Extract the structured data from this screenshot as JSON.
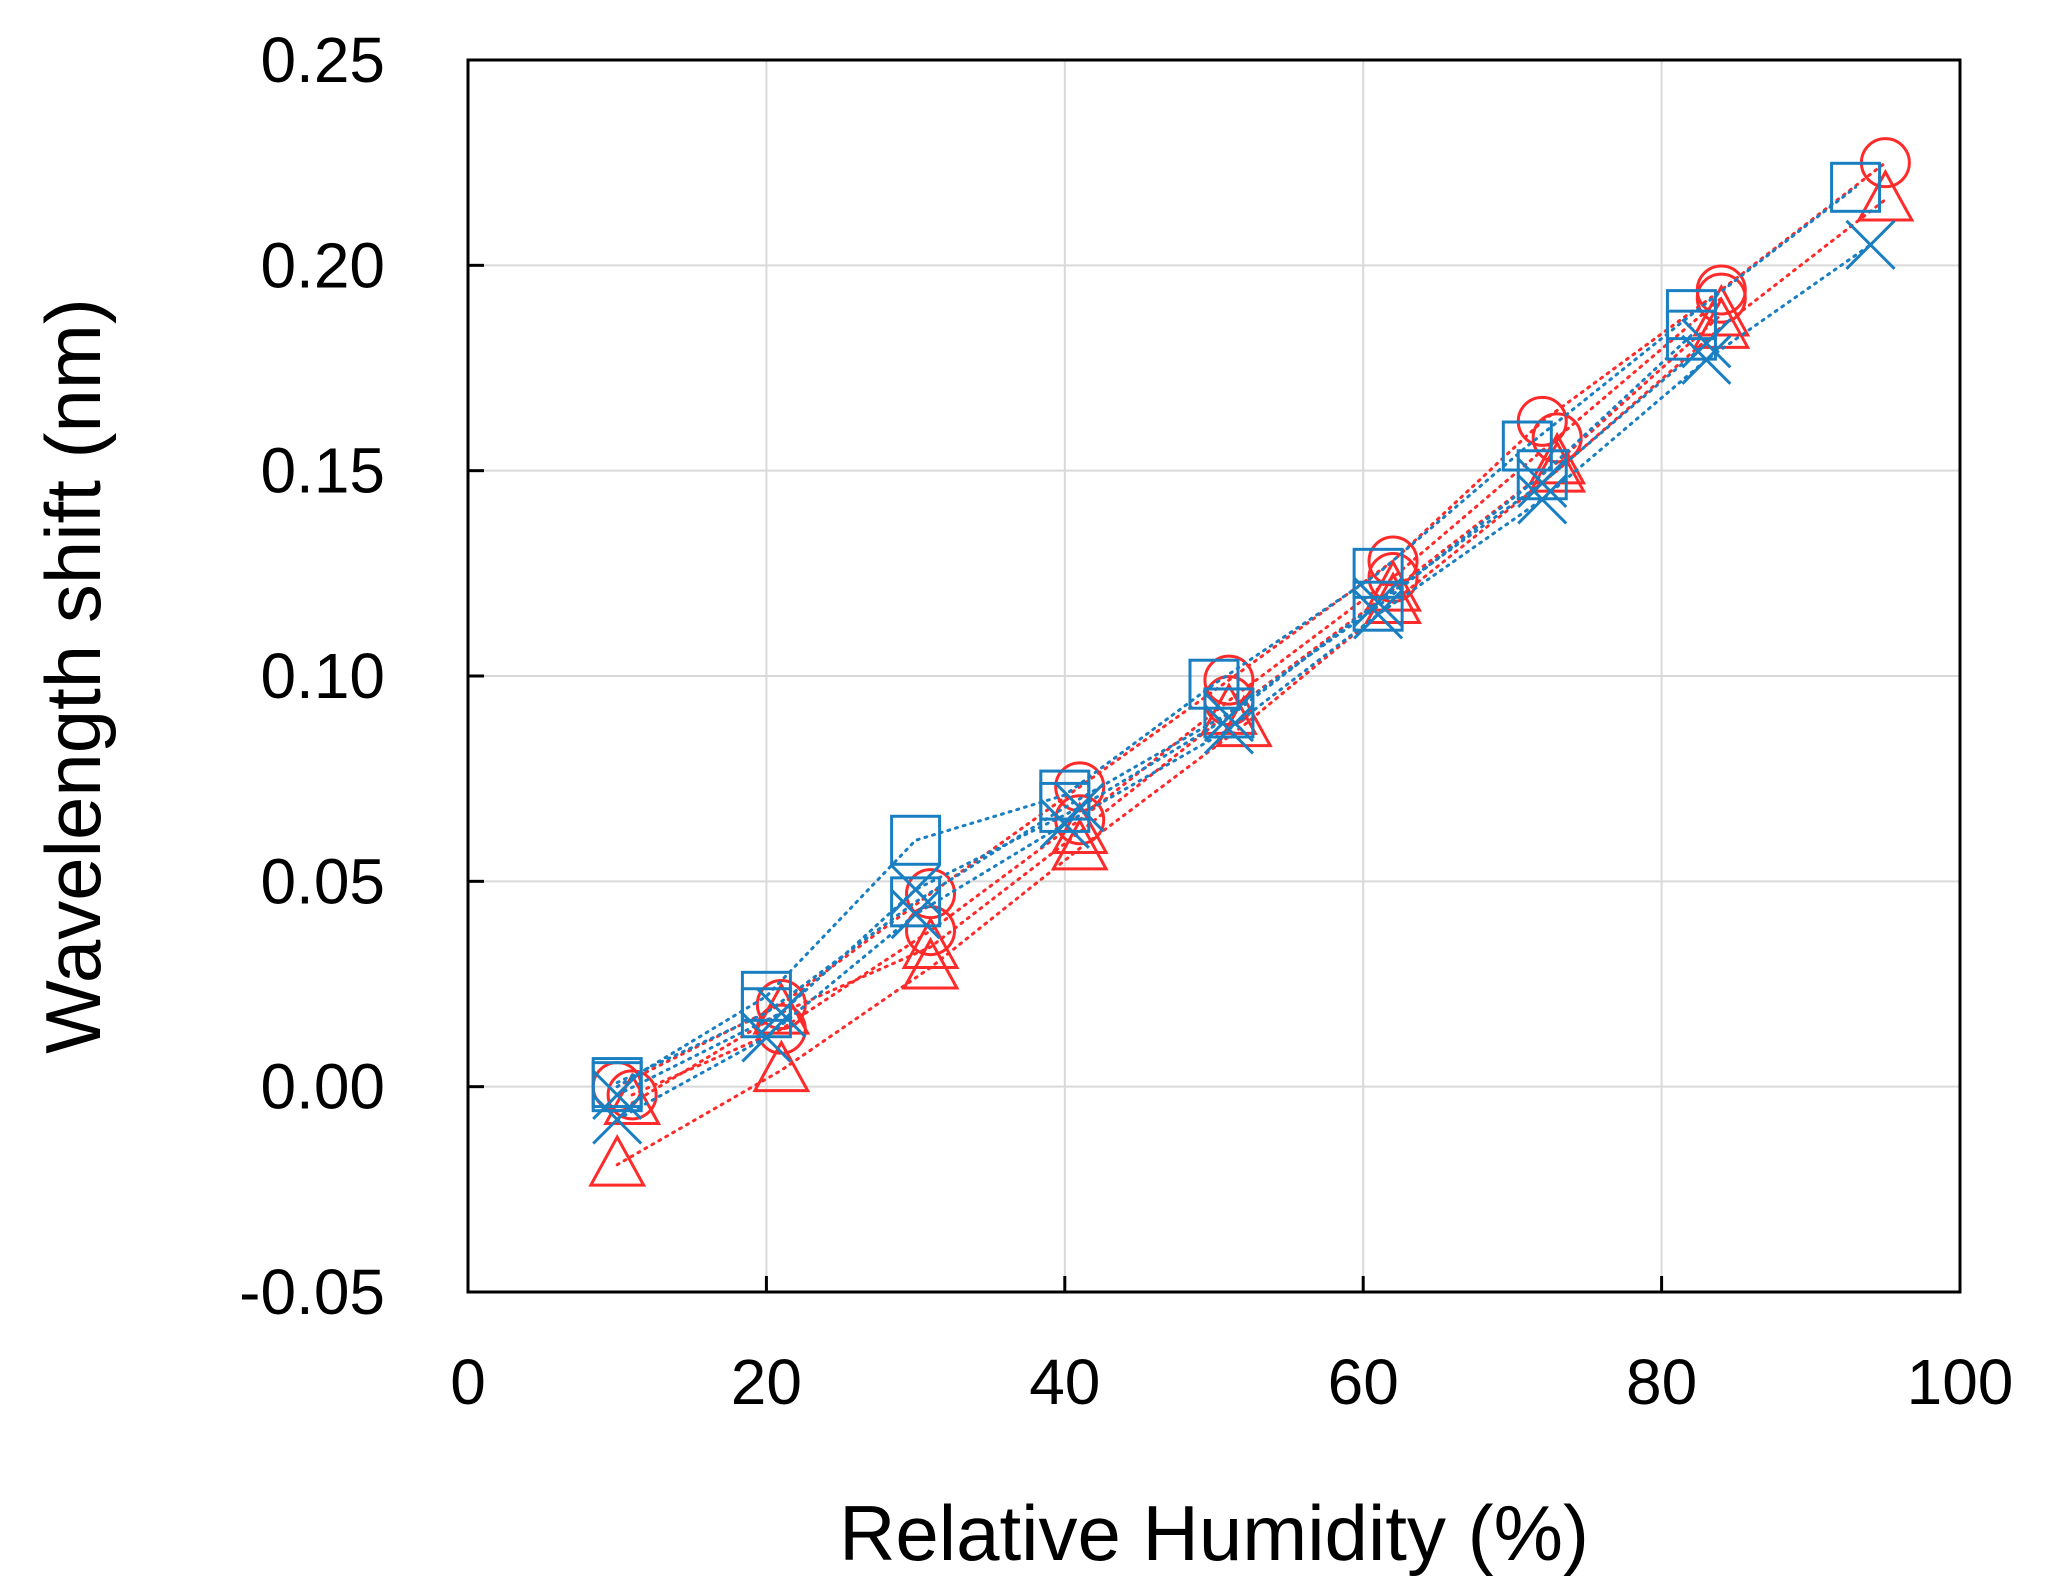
{
  "chart_data": {
    "type": "scatter",
    "title": "",
    "xlabel": "Relative Humidity (%)",
    "ylabel": "Wavelength shift (nm)",
    "xlim": [
      0,
      100
    ],
    "ylim": [
      -0.05,
      0.25
    ],
    "xticks": [
      0,
      20,
      40,
      60,
      80,
      100
    ],
    "xtick_labels": [
      "0",
      "20",
      "40",
      "60",
      "80",
      "100"
    ],
    "yticks": [
      -0.05,
      0.0,
      0.05,
      0.1,
      0.15,
      0.2,
      0.25
    ],
    "ytick_labels": [
      "-0.05",
      "0.00",
      "0.05",
      "0.10",
      "0.15",
      "0.20",
      "0.25"
    ],
    "grid": true,
    "legend": "none",
    "colors": {
      "red": "#ff2a2a",
      "blue": "#1a7fc1"
    },
    "series": [
      {
        "name": "red-circle-a",
        "marker": "circle",
        "color": "#ff2a2a",
        "x": [
          10,
          21,
          31,
          41,
          51,
          62,
          72,
          84,
          95
        ],
        "y": [
          0.0,
          0.02,
          0.047,
          0.073,
          0.099,
          0.128,
          0.162,
          0.194,
          0.225
        ]
      },
      {
        "name": "red-circle-b",
        "marker": "circle",
        "color": "#ff2a2a",
        "x": [
          11,
          21,
          31,
          41,
          51,
          62,
          73,
          84
        ],
        "y": [
          -0.002,
          0.014,
          0.038,
          0.065,
          0.094,
          0.124,
          0.158,
          0.192
        ]
      },
      {
        "name": "red-triangle-a",
        "marker": "triangle",
        "color": "#ff2a2a",
        "x": [
          10,
          21,
          31,
          41,
          52,
          62,
          73,
          84,
          95
        ],
        "y": [
          -0.019,
          0.004,
          0.029,
          0.058,
          0.088,
          0.118,
          0.15,
          0.185,
          0.216
        ]
      },
      {
        "name": "red-triangle-b",
        "marker": "triangle",
        "color": "#ff2a2a",
        "x": [
          11,
          21,
          31,
          41,
          51,
          62,
          73,
          84
        ],
        "y": [
          -0.004,
          0.018,
          0.034,
          0.062,
          0.091,
          0.121,
          0.152,
          0.188
        ]
      },
      {
        "name": "blue-square-a",
        "marker": "square",
        "color": "#1a7fc1",
        "x": [
          10,
          20,
          30,
          40,
          50,
          61,
          71,
          82,
          93
        ],
        "y": [
          0.0,
          0.022,
          0.06,
          0.071,
          0.098,
          0.125,
          0.156,
          0.188,
          0.219
        ]
      },
      {
        "name": "blue-square-b",
        "marker": "square",
        "color": "#1a7fc1",
        "x": [
          10,
          20,
          30,
          40,
          51,
          61,
          72,
          82
        ],
        "y": [
          0.001,
          0.018,
          0.045,
          0.068,
          0.091,
          0.117,
          0.149,
          0.183
        ]
      },
      {
        "name": "blue-cross-a",
        "marker": "cross",
        "color": "#1a7fc1",
        "x": [
          10,
          20,
          30,
          40,
          51,
          61,
          72,
          83,
          94
        ],
        "y": [
          -0.008,
          0.012,
          0.042,
          0.064,
          0.087,
          0.115,
          0.143,
          0.177,
          0.205
        ]
      },
      {
        "name": "blue-cross-b",
        "marker": "cross",
        "color": "#1a7fc1",
        "x": [
          10,
          21,
          30,
          41,
          51,
          61,
          72,
          83
        ],
        "y": [
          -0.002,
          0.018,
          0.048,
          0.068,
          0.09,
          0.118,
          0.147,
          0.181
        ]
      }
    ]
  }
}
